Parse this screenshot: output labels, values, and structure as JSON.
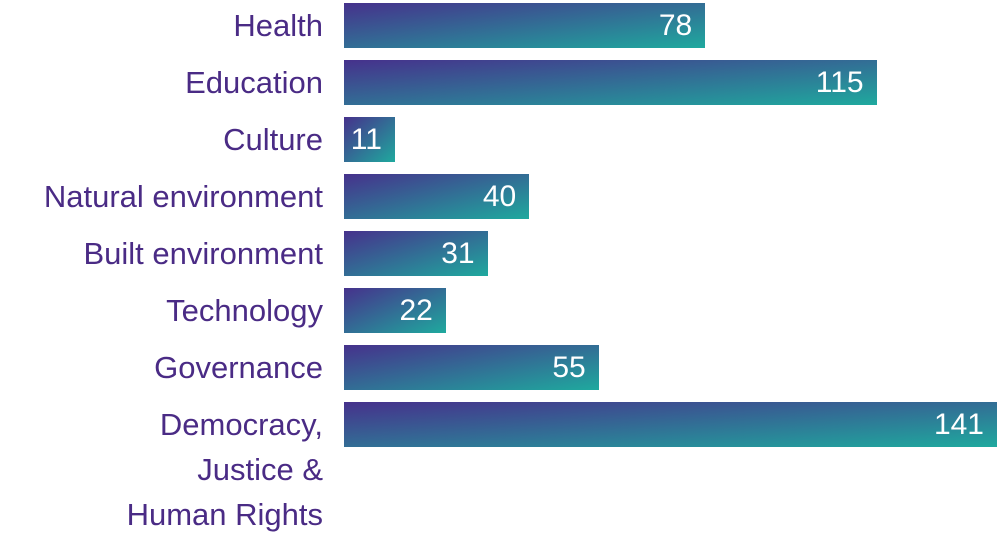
{
  "chart_data": {
    "type": "bar",
    "orientation": "horizontal",
    "title": "",
    "xlabel": "",
    "ylabel": "",
    "categories": [
      "Health",
      "Education",
      "Culture",
      "Natural environment",
      "Built environment",
      "Technology",
      "Governance",
      "Democracy, Justice & Human Rights"
    ],
    "display_labels": [
      "Health",
      "Education",
      "Culture",
      "Natural environment",
      "Built environment",
      "Technology",
      "Governance",
      "Democracy,\nJustice &\nHuman Rights"
    ],
    "values": [
      78,
      115,
      11,
      40,
      31,
      22,
      55,
      141
    ],
    "xlim": [
      0,
      141
    ],
    "grid": false,
    "legend": false,
    "value_labels_shown": true,
    "colors": {
      "bar_gradient_start": "#46318c",
      "bar_gradient_end": "#1fa99e",
      "category_label": "#4a2b85",
      "value_label": "#ffffff",
      "background": "#ffffff"
    }
  }
}
